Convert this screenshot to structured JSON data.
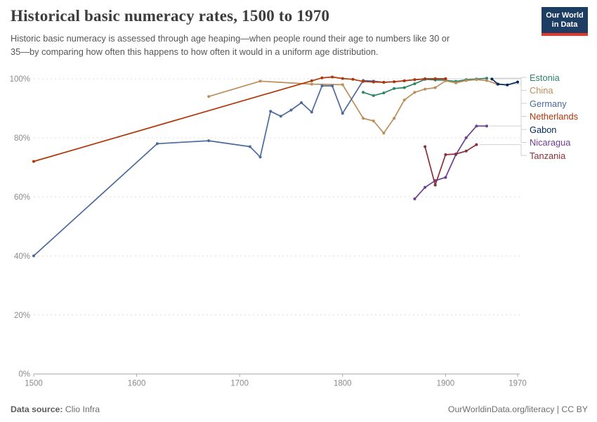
{
  "header": {
    "title": "Historical basic numeracy rates, 1500 to 1970",
    "subtitle_line1": "Historic basic numeracy is assessed through age heaping—when people round their age to numbers like 30 or",
    "subtitle_line2": "35—by comparing how often this happens to how often it would in a uniform age distribution.",
    "logo": {
      "line1": "Our World",
      "line2": "in Data"
    }
  },
  "footer": {
    "source_label": "Data source:",
    "source_value": "Clio Infra",
    "attribution": "OurWorldinData.org/literacy | CC BY"
  },
  "chart_data": {
    "type": "line",
    "title": "Historical basic numeracy rates, 1500 to 1970",
    "xlabel": "",
    "ylabel": "",
    "xlim": [
      1500,
      1970
    ],
    "ylim": [
      0,
      100
    ],
    "grid": "horizontal-dashed",
    "legend_position": "right",
    "x_ticks": [
      "1500",
      "1600",
      "1700",
      "1800",
      "1900",
      "1970"
    ],
    "x_tick_values": [
      1500,
      1600,
      1700,
      1800,
      1900,
      1970
    ],
    "y_ticks": [
      "0%",
      "20%",
      "40%",
      "60%",
      "80%",
      "100%"
    ],
    "y_tick_values": [
      0,
      20,
      40,
      60,
      80,
      100
    ],
    "axis_color": "#a8a8a8",
    "grid_color": "#dcdcdc",
    "connector_color": "#d2d2d2",
    "series": [
      {
        "name": "Estonia",
        "color": "#2C8465",
        "points": [
          [
            1820,
            95.4
          ],
          [
            1830,
            94.3
          ],
          [
            1840,
            95.2
          ],
          [
            1850,
            96.7
          ],
          [
            1860,
            97.0
          ],
          [
            1870,
            98.3
          ],
          [
            1880,
            99.8
          ],
          [
            1890,
            99.6
          ],
          [
            1900,
            99.5
          ],
          [
            1910,
            99.1
          ],
          [
            1920,
            99.7
          ],
          [
            1930,
            99.9
          ],
          [
            1940,
            100.2
          ]
        ]
      },
      {
        "name": "China",
        "color": "#BC8E5A",
        "points": [
          [
            1670,
            94.0
          ],
          [
            1720,
            99.2
          ],
          [
            1770,
            98.2
          ],
          [
            1800,
            98.0
          ],
          [
            1820,
            86.6
          ],
          [
            1830,
            85.7
          ],
          [
            1840,
            81.6
          ],
          [
            1850,
            86.6
          ],
          [
            1860,
            92.8
          ],
          [
            1870,
            95.4
          ],
          [
            1880,
            96.5
          ],
          [
            1890,
            97.0
          ],
          [
            1900,
            99.3
          ],
          [
            1910,
            98.6
          ],
          [
            1920,
            99.4
          ],
          [
            1930,
            99.7
          ],
          [
            1940,
            99.4
          ],
          [
            1950,
            98.2
          ]
        ]
      },
      {
        "name": "Germany",
        "color": "#4C6A9C",
        "points": [
          [
            1500,
            40.0
          ],
          [
            1620,
            78.0
          ],
          [
            1670,
            79.0
          ],
          [
            1710,
            77.0
          ],
          [
            1720,
            73.5
          ],
          [
            1730,
            89.0
          ],
          [
            1740,
            87.3
          ],
          [
            1750,
            89.4
          ],
          [
            1760,
            91.9
          ],
          [
            1770,
            88.7
          ],
          [
            1780,
            97.6
          ],
          [
            1790,
            97.6
          ],
          [
            1800,
            88.3
          ],
          [
            1820,
            99.4
          ],
          [
            1830,
            99.2
          ],
          [
            1840,
            98.8
          ],
          [
            1850,
            99.0
          ],
          [
            1860,
            99.3
          ],
          [
            1870,
            99.7
          ],
          [
            1880,
            99.9
          ],
          [
            1890,
            100.0
          ],
          [
            1900,
            100.0
          ]
        ]
      },
      {
        "name": "Netherlands",
        "color": "#B13507",
        "points": [
          [
            1500,
            72.0
          ],
          [
            1770,
            99.3
          ],
          [
            1780,
            100.3
          ],
          [
            1790,
            100.6
          ],
          [
            1800,
            100.1
          ],
          [
            1810,
            99.8
          ],
          [
            1820,
            99.1
          ],
          [
            1830,
            98.9
          ],
          [
            1840,
            98.8
          ],
          [
            1850,
            99.0
          ],
          [
            1860,
            99.3
          ],
          [
            1870,
            99.7
          ],
          [
            1880,
            100.0
          ],
          [
            1890,
            100.0
          ],
          [
            1900,
            100.0
          ]
        ]
      },
      {
        "name": "Gabon",
        "color": "#00295B",
        "points": [
          [
            1945,
            99.9
          ],
          [
            1951,
            98.2
          ],
          [
            1960,
            97.9
          ],
          [
            1970,
            98.9
          ]
        ]
      },
      {
        "name": "Nicaragua",
        "color": "#6D3E91",
        "points": [
          [
            1870,
            59.3
          ],
          [
            1880,
            63.2
          ],
          [
            1890,
            65.5
          ],
          [
            1900,
            66.6
          ],
          [
            1910,
            74.3
          ],
          [
            1920,
            80.0
          ],
          [
            1930,
            84.0
          ],
          [
            1940,
            84.0
          ]
        ]
      },
      {
        "name": "Tanzania",
        "color": "#883039",
        "points": [
          [
            1880,
            77.0
          ],
          [
            1890,
            64.0
          ],
          [
            1900,
            74.3
          ],
          [
            1910,
            74.5
          ],
          [
            1920,
            75.5
          ],
          [
            1930,
            77.7
          ]
        ]
      }
    ]
  }
}
